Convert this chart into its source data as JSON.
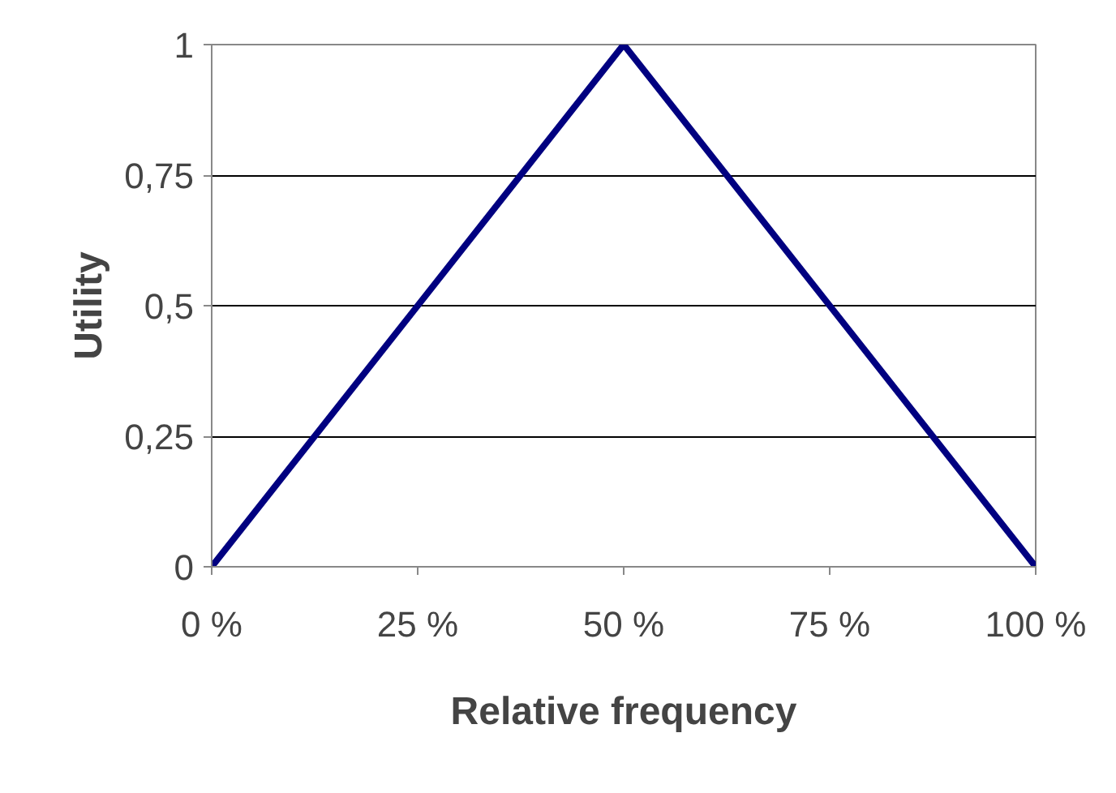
{
  "chart_data": {
    "type": "line",
    "xlabel": "Relative frequency",
    "ylabel": "Utility",
    "x": [
      0,
      50,
      100
    ],
    "series": [
      {
        "color": "#000080",
        "values": [
          0,
          1,
          0
        ]
      }
    ],
    "xlim": [
      0,
      100
    ],
    "ylim": [
      0,
      1
    ],
    "xticks": [
      {
        "value": 0,
        "label": "0 %"
      },
      {
        "value": 25,
        "label": "25 %"
      },
      {
        "value": 50,
        "label": "50 %"
      },
      {
        "value": 75,
        "label": "75 %"
      },
      {
        "value": 100,
        "label": "100 %"
      }
    ],
    "yticks": [
      0,
      {
        "value": 0.25,
        "label": "0,25"
      },
      {
        "value": 0.5,
        "label": "0,5"
      },
      {
        "value": 0.75,
        "label": "0,75"
      },
      1
    ],
    "grid": "y",
    "marker": "none",
    "line_style": "solid"
  }
}
